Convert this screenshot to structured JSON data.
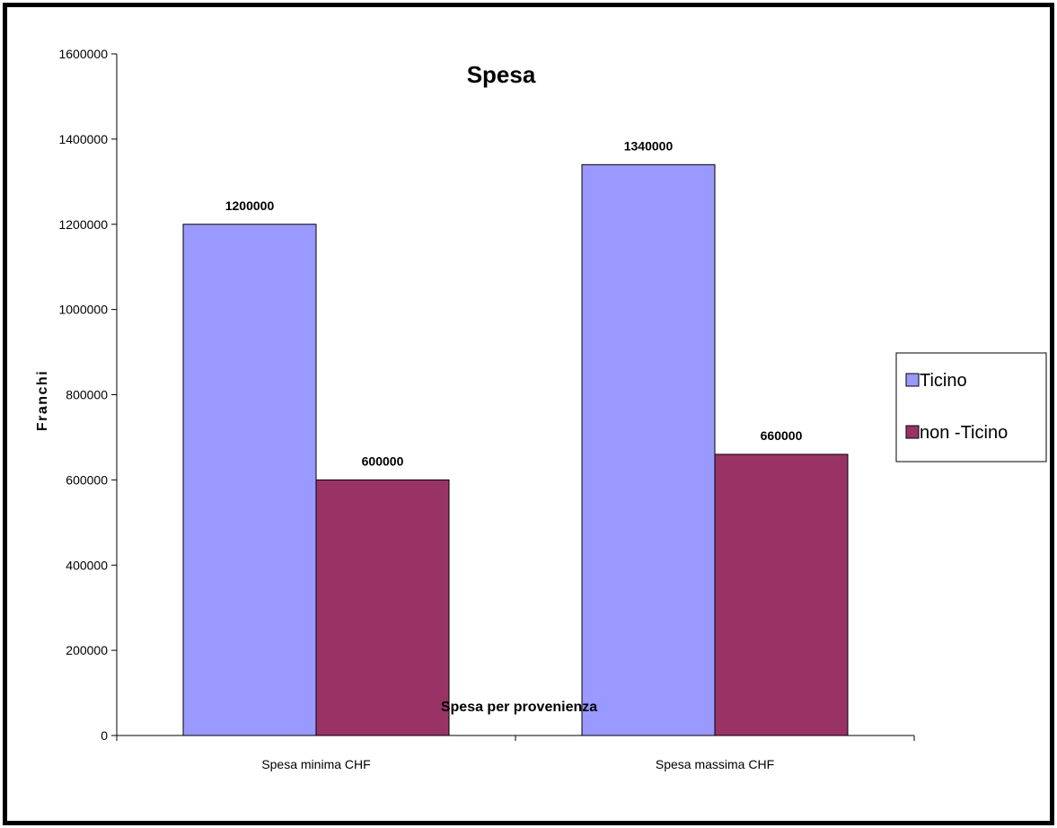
{
  "chart_data": {
    "type": "bar",
    "title": "Spesa",
    "xlabel": "Spesa per provenienza",
    "ylabel": "Franchi",
    "categories": [
      "Spesa minima CHF",
      "Spesa massima CHF"
    ],
    "series": [
      {
        "name": "Ticino",
        "values": [
          1200000,
          1340000
        ],
        "color": "#9999ff"
      },
      {
        "name": "non -Ticino",
        "values": [
          600000,
          660000
        ],
        "color": "#993366"
      }
    ],
    "ylim": [
      0,
      1600000
    ],
    "yticks": [
      0,
      200000,
      400000,
      600000,
      800000,
      1000000,
      1200000,
      1400000,
      1600000
    ],
    "grid": false,
    "legend_position": "right",
    "data_labels": true
  }
}
